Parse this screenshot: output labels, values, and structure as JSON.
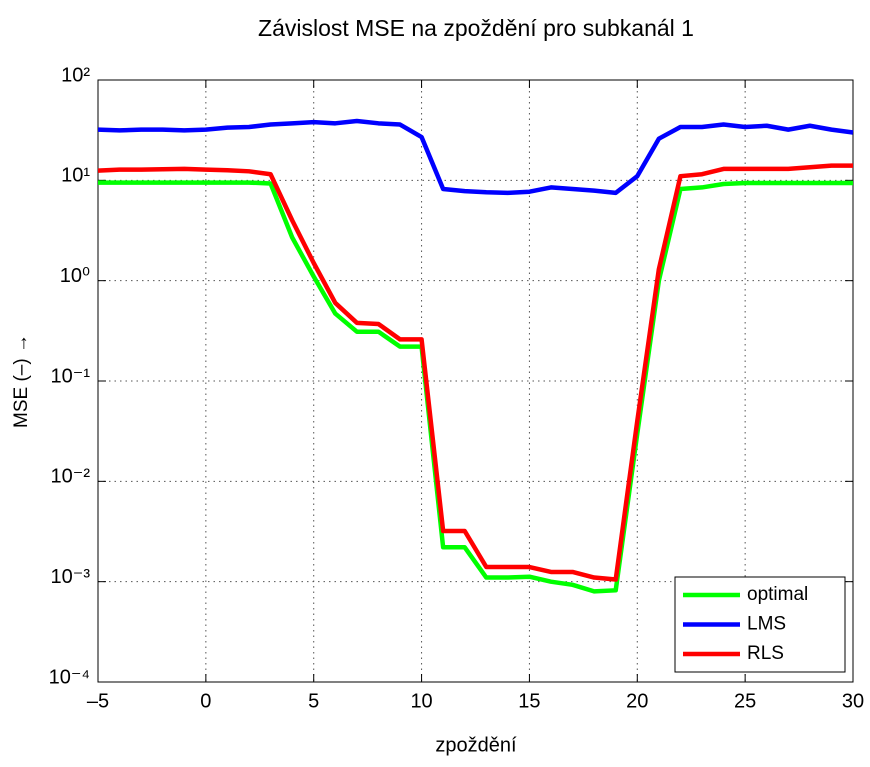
{
  "chart_data": {
    "type": "line",
    "title": "Závislost MSE na zpoždění pro subkanál 1",
    "xlabel": "zpoždění",
    "ylabel": "MSE (–) →",
    "log_y": true,
    "grid": true,
    "legend_position": "lower right",
    "x": [
      -5,
      -4,
      -3,
      -2,
      -1,
      0,
      1,
      2,
      3,
      4,
      5,
      6,
      7,
      8,
      9,
      10,
      11,
      12,
      13,
      14,
      15,
      16,
      17,
      18,
      19,
      20,
      21,
      22,
      23,
      24,
      25,
      26,
      27,
      28,
      29,
      30
    ],
    "xlim": [
      -5,
      30
    ],
    "xticks": [
      {
        "value": -5,
        "label": "–5"
      },
      0,
      5,
      10,
      15,
      20,
      25,
      30
    ],
    "ylim": [
      0.0001,
      100
    ],
    "yticks": [
      {
        "value": 0.0001,
        "label": "10⁻⁴"
      },
      {
        "value": 0.001,
        "label": "10⁻³"
      },
      {
        "value": 0.01,
        "label": "10⁻²"
      },
      {
        "value": 0.1,
        "label": "10⁻¹"
      },
      {
        "value": 1,
        "label": "10⁰"
      },
      {
        "value": 10,
        "label": "10¹"
      },
      {
        "value": 100,
        "label": "10²"
      }
    ],
    "series": [
      {
        "name": "optimal",
        "color": "#00ff00",
        "values": [
          9.5,
          9.5,
          9.5,
          9.5,
          9.5,
          9.5,
          9.5,
          9.5,
          9.3,
          2.7,
          1.1,
          0.47,
          0.31,
          0.31,
          0.22,
          0.22,
          0.0022,
          0.0022,
          0.0011,
          0.0011,
          0.00112,
          0.001,
          0.00093,
          0.0008,
          0.00082,
          0.03,
          1.0,
          8.2,
          8.5,
          9.2,
          9.4,
          9.4,
          9.4,
          9.4,
          9.4,
          9.4
        ]
      },
      {
        "name": "LMS",
        "color": "#0000ff",
        "values": [
          32,
          31.5,
          32,
          32,
          31.5,
          32,
          33.5,
          34,
          36,
          37,
          38,
          37,
          39,
          37,
          36,
          27,
          8.2,
          7.8,
          7.6,
          7.5,
          7.7,
          8.5,
          8.2,
          7.9,
          7.5,
          11,
          26,
          34,
          34,
          36,
          34,
          35,
          32,
          35,
          32,
          30
        ]
      },
      {
        "name": "RLS",
        "color": "#ff0000",
        "values": [
          12.5,
          12.8,
          12.8,
          12.9,
          13,
          12.8,
          12.6,
          12.3,
          11.5,
          4,
          1.5,
          0.6,
          0.38,
          0.37,
          0.26,
          0.26,
          0.0032,
          0.0032,
          0.0014,
          0.0014,
          0.0014,
          0.00125,
          0.00125,
          0.0011,
          0.00105,
          0.04,
          1.3,
          11,
          11.5,
          13,
          13,
          13,
          13,
          13.5,
          14,
          14
        ]
      }
    ]
  }
}
